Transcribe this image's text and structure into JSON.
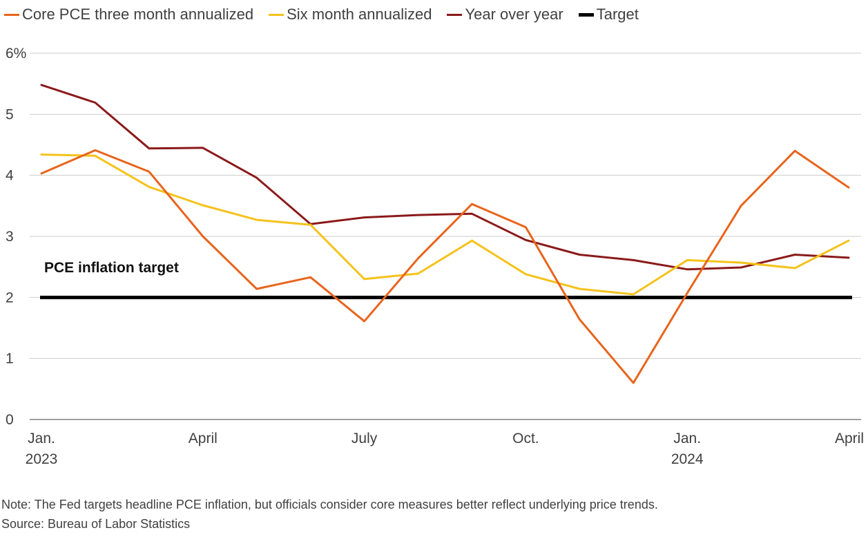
{
  "legend": [
    {
      "label": "Core PCE three month annualized",
      "color": "#e8641b"
    },
    {
      "label": "Six month annualized",
      "color": "#f5c21b"
    },
    {
      "label": "Year over year",
      "color": "#8b1a1a"
    },
    {
      "label": "Target",
      "color": "#000000"
    }
  ],
  "footer": {
    "note": "Note: The Fed targets headline PCE inflation, but officials consider core measures better reflect underlying price trends.",
    "source": "Source: Bureau of Labor Statistics"
  },
  "chart_data": {
    "type": "line",
    "x": [
      "2023-01",
      "2023-02",
      "2023-03",
      "2023-04",
      "2023-05",
      "2023-06",
      "2023-07",
      "2023-08",
      "2023-09",
      "2023-10",
      "2023-11",
      "2023-12",
      "2024-01",
      "2024-02",
      "2024-03",
      "2024-04"
    ],
    "x_tick_labels": [
      {
        "index": 0,
        "lines": [
          "Jan.",
          "2023"
        ]
      },
      {
        "index": 3,
        "lines": [
          "April"
        ]
      },
      {
        "index": 6,
        "lines": [
          "July"
        ]
      },
      {
        "index": 9,
        "lines": [
          "Oct."
        ]
      },
      {
        "index": 12,
        "lines": [
          "Jan.",
          "2024"
        ]
      },
      {
        "index": 15,
        "lines": [
          "April"
        ]
      }
    ],
    "ylim": [
      0,
      6
    ],
    "y_ticks": [
      0,
      1,
      2,
      3,
      4,
      5,
      6
    ],
    "y_tick_labels": [
      "0",
      "1",
      "2",
      "3",
      "4",
      "5",
      "6%"
    ],
    "grid": true,
    "series": [
      {
        "name": "Core PCE three month annualized",
        "color": "#e8641b",
        "values": [
          4.03,
          4.41,
          4.06,
          3.0,
          2.14,
          2.33,
          1.61,
          2.64,
          3.53,
          3.15,
          1.64,
          0.6,
          2.07,
          3.5,
          4.4,
          3.8
        ]
      },
      {
        "name": "Six month annualized",
        "color": "#f5c21b",
        "values": [
          4.34,
          4.32,
          3.81,
          3.51,
          3.27,
          3.19,
          2.3,
          2.39,
          2.93,
          2.38,
          2.14,
          2.05,
          2.61,
          2.57,
          2.48,
          2.93
        ]
      },
      {
        "name": "Year over year",
        "color": "#8b1a1a",
        "values": [
          5.48,
          5.19,
          4.44,
          4.45,
          3.96,
          3.2,
          3.31,
          3.35,
          3.37,
          2.94,
          2.7,
          2.61,
          2.46,
          2.49,
          2.7,
          2.65
        ]
      },
      {
        "name": "Target",
        "color": "#000000",
        "values": [
          2,
          2,
          2,
          2,
          2,
          2,
          2,
          2,
          2,
          2,
          2,
          2,
          2,
          2,
          2,
          2
        ]
      }
    ],
    "annotations": [
      {
        "text": "PCE inflation target"
      }
    ]
  }
}
